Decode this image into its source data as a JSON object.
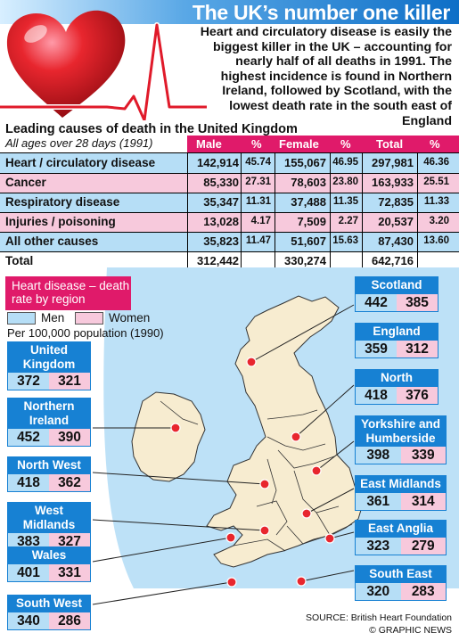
{
  "header": {
    "title": "The UK’s number one killer",
    "intro": "Heart and circulatory disease is easily the biggest killer in the UK – accounting for nearly half of all deaths in 1991. The highest incidence is found in Northern Ireland, followed by Scotland, with the lowest death rate in the south east of England"
  },
  "table": {
    "title": "Leading causes of death in the United Kingdom",
    "subtitle": "All ages over 28 days (1991)",
    "columns": [
      "Male",
      "%",
      "Female",
      "%",
      "Total",
      "%"
    ],
    "rows": [
      {
        "cause": "Heart / circulatory disease",
        "male": "142,914",
        "male_pct": "45.74",
        "female": "155,067",
        "female_pct": "46.95",
        "total": "297,981",
        "total_pct": "46.36"
      },
      {
        "cause": "Cancer",
        "male": "85,330",
        "male_pct": "27.31",
        "female": "78,603",
        "female_pct": "23.80",
        "total": "163,933",
        "total_pct": "25.51"
      },
      {
        "cause": "Respiratory disease",
        "male": "35,347",
        "male_pct": "11.31",
        "female": "37,488",
        "female_pct": "11.35",
        "total": "72,835",
        "total_pct": "11.33"
      },
      {
        "cause": "Injuries / poisoning",
        "male": "13,028",
        "male_pct": "4.17",
        "female": "7,509",
        "female_pct": "2.27",
        "total": "20,537",
        "total_pct": "3.20"
      },
      {
        "cause": "All other causes",
        "male": "35,823",
        "male_pct": "11.47",
        "female": "51,607",
        "female_pct": "15.63",
        "total": "87,430",
        "total_pct": "13.60"
      },
      {
        "cause": "Total",
        "male": "312,442",
        "male_pct": "",
        "female": "330,274",
        "female_pct": "",
        "total": "642,716",
        "total_pct": ""
      }
    ]
  },
  "map": {
    "title": "Heart disease – death rate by region",
    "legend_men": "Men",
    "legend_women": "Women",
    "per_label": "Per 100,000 population (1990)",
    "colors": {
      "men": "#b6def6",
      "women": "#f7c9dc",
      "region_header": "#1781d3",
      "accent": "#e01a6a",
      "land": "#f7ecd0",
      "sea": "#b6def6"
    }
  },
  "chart_data": {
    "type": "table",
    "title": "Heart disease – death rate by region",
    "subtitle": "Per 100,000 population (1990)",
    "series": [
      {
        "name": "Men",
        "values": [
          442,
          359,
          418,
          398,
          361,
          323,
          320,
          372,
          452,
          418,
          383,
          401,
          340
        ]
      },
      {
        "name": "Women",
        "values": [
          385,
          312,
          376,
          339,
          314,
          279,
          283,
          321,
          390,
          362,
          327,
          331,
          286
        ]
      }
    ],
    "categories": [
      "Scotland",
      "England",
      "North",
      "Yorkshire and Humberside",
      "East Midlands",
      "East Anglia",
      "South East",
      "United Kingdom",
      "Northern Ireland",
      "North West",
      "West Midlands",
      "Wales",
      "South West"
    ]
  },
  "regions": [
    {
      "name": "Scotland",
      "men": "442",
      "women": "385"
    },
    {
      "name": "England",
      "men": "359",
      "women": "312"
    },
    {
      "name": "North",
      "men": "418",
      "women": "376"
    },
    {
      "name": "Yorkshire and Humberside",
      "men": "398",
      "women": "339"
    },
    {
      "name": "East Midlands",
      "men": "361",
      "women": "314"
    },
    {
      "name": "East Anglia",
      "men": "323",
      "women": "279"
    },
    {
      "name": "South East",
      "men": "320",
      "women": "283"
    },
    {
      "name": "United Kingdom",
      "men": "372",
      "women": "321"
    },
    {
      "name": "Northern Ireland",
      "men": "452",
      "women": "390"
    },
    {
      "name": "North West",
      "men": "418",
      "women": "362"
    },
    {
      "name": "West Midlands",
      "men": "383",
      "women": "327"
    },
    {
      "name": "Wales",
      "men": "401",
      "women": "331"
    },
    {
      "name": "South West",
      "men": "340",
      "women": "286"
    }
  ],
  "footer": {
    "source": "SOURCE: British Heart Foundation",
    "credit": "© GRAPHIC NEWS"
  }
}
